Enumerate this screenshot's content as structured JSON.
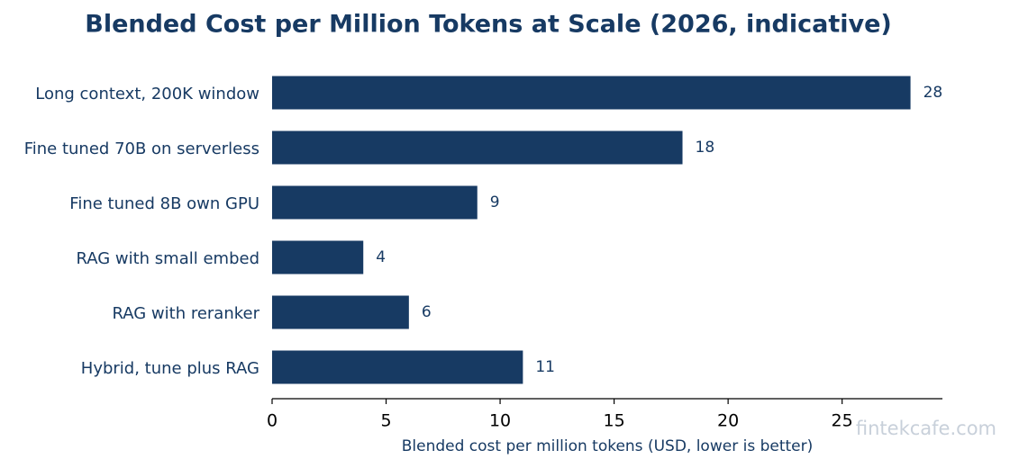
{
  "chart_data": {
    "type": "barh",
    "title": "Blended Cost per Million Tokens at Scale (2026, indicative)",
    "xlabel": "Blended cost per million tokens (USD, lower is better)",
    "categories": [
      "Long context, 200K window",
      "Fine tuned 70B on serverless",
      "Fine tuned 8B own GPU",
      "RAG with small embed",
      "RAG with reranker",
      "Hybrid, tune plus RAG"
    ],
    "values": [
      28,
      18,
      9,
      4,
      6,
      11
    ],
    "color": "#173a63",
    "xlim": [
      0,
      29.4
    ],
    "xticks": [
      0,
      5,
      10,
      15,
      20,
      25
    ],
    "grid": false,
    "watermark": "fintekcafe.com"
  }
}
